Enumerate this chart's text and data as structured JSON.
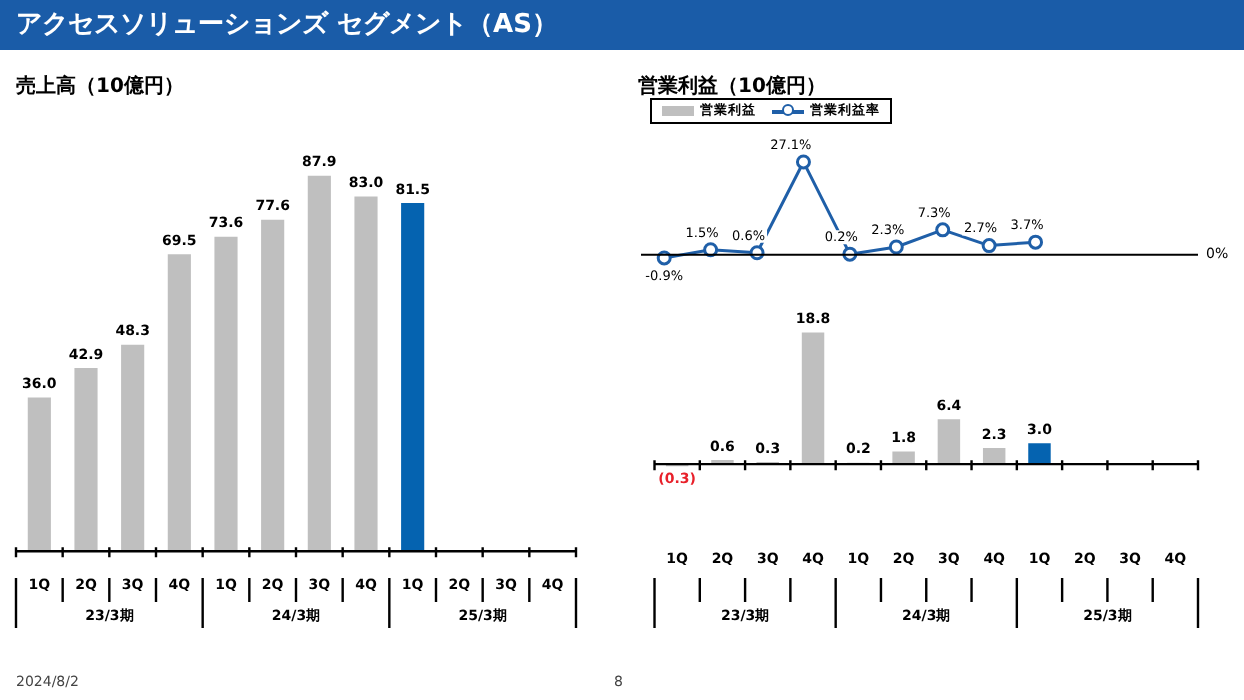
{
  "chart_data": [
    {
      "type": "bar",
      "title": "アクセスソリューションズ セグメント（AS）",
      "subtitle": "売上高（10億円）",
      "categories": [
        "1Q",
        "2Q",
        "3Q",
        "4Q",
        "1Q",
        "2Q",
        "3Q",
        "4Q",
        "1Q",
        "2Q",
        "3Q",
        "4Q"
      ],
      "values": [
        36.0,
        42.9,
        48.3,
        69.5,
        73.6,
        77.6,
        87.9,
        83.0,
        81.5,
        null,
        null,
        null
      ],
      "value_labels": [
        "36.0",
        "42.9",
        "48.3",
        "69.5",
        "73.6",
        "77.6",
        "87.9",
        "83.0",
        "81.5",
        null,
        null,
        null
      ],
      "colors": [
        "#bfbfbf",
        "#bfbfbf",
        "#bfbfbf",
        "#bfbfbf",
        "#bfbfbf",
        "#bfbfbf",
        "#bfbfbf",
        "#bfbfbf",
        "#0563b0",
        "#bfbfbf",
        "#bfbfbf",
        "#bfbfbf"
      ],
      "tick_labels": "x",
      "legend": false,
      "annotations": [
        "23/3期",
        "24/3期",
        "25/3期",
        "2024/8/2",
        "8"
      ]
    },
    {
      "type": "line",
      "title": "営業利益（10億円）",
      "categories": [
        null,
        null,
        null,
        null,
        null,
        null,
        null,
        null,
        null,
        null,
        null,
        null
      ],
      "series": [
        {
          "name": "営業利益率",
          "color": "#1f5fa8",
          "values": [
            -0.9,
            1.5,
            0.6,
            27.1,
            0.2,
            2.3,
            7.3,
            2.7,
            3.7,
            null,
            null,
            null
          ],
          "value_labels": [
            "-0.9%",
            "1.5%",
            "0.6%",
            "27.1%",
            "0.2%",
            "2.3%",
            "7.3%",
            "2.7%",
            "3.7%",
            null,
            null,
            null
          ]
        }
      ],
      "marker": "circle",
      "tick_labels": false,
      "legend": "top left",
      "ref_lines": [
        {
          "axis": "y",
          "value": 0,
          "label": "0%"
        }
      ]
    },
    {
      "type": "bar",
      "categories": [
        "1Q",
        "2Q",
        "3Q",
        "4Q",
        "1Q",
        "2Q",
        "3Q",
        "4Q",
        "1Q",
        "2Q",
        "3Q",
        "4Q"
      ],
      "series": [
        {
          "name": "営業利益",
          "color": "#bfbfbf",
          "colors": [
            "#bfbfbf",
            "#bfbfbf",
            "#bfbfbf",
            "#bfbfbf",
            "#bfbfbf",
            "#bfbfbf",
            "#bfbfbf",
            "#bfbfbf",
            "#0563b0",
            "#bfbfbf",
            "#bfbfbf",
            "#bfbfbf"
          ],
          "values": [
            -0.3,
            0.6,
            0.3,
            18.8,
            0.2,
            1.8,
            6.4,
            2.3,
            3.0,
            null,
            null,
            null
          ],
          "value_labels": [
            "(0.3)",
            "0.6",
            "0.3",
            "18.8",
            "0.2",
            "1.8",
            "6.4",
            "2.3",
            "3.0",
            null,
            null,
            null
          ]
        }
      ],
      "tick_labels": "x",
      "legend": "top left",
      "annotations": [
        "23/3期",
        "24/3期",
        "25/3期"
      ]
    }
  ]
}
